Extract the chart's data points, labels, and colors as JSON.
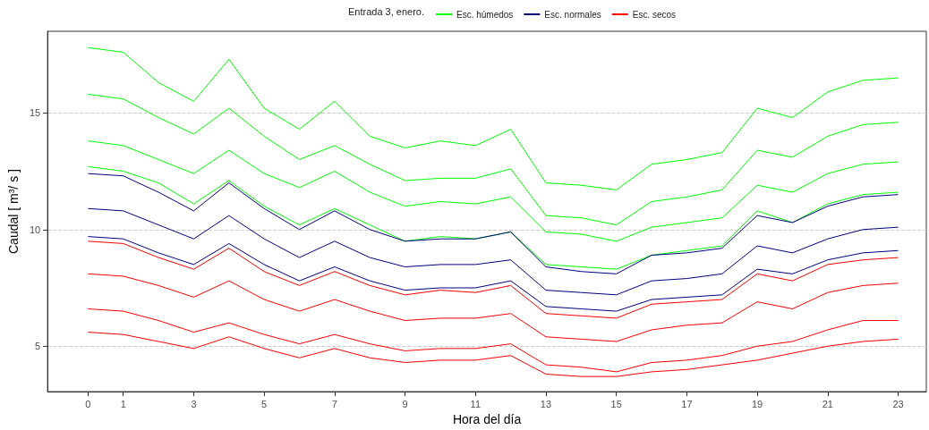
{
  "chart_data": {
    "type": "line",
    "legend_title": "Entrada 3, enero.",
    "xlabel": "Hora del día",
    "ylabel": "Caudal [ m³/ s ]",
    "x": [
      0,
      1,
      2,
      3,
      4,
      5,
      6,
      7,
      8,
      9,
      10,
      11,
      12,
      13,
      14,
      15,
      16,
      17,
      18,
      19,
      20,
      21,
      22,
      23
    ],
    "xlim": [
      -1.15,
      23.8
    ],
    "xticks": [
      0,
      1,
      3,
      5,
      7,
      9,
      11,
      13,
      15,
      17,
      19,
      21,
      23
    ],
    "ylim": [
      3.05,
      18.5
    ],
    "yticks": [
      5,
      10,
      15
    ],
    "grid": "y",
    "legend": "top",
    "marker": "none",
    "line_style": "solid",
    "series": [
      {
        "name": "Esc. húmedos",
        "color": "#00ff00",
        "values": [
          17.8,
          17.6,
          16.3,
          15.5,
          17.3,
          15.2,
          14.3,
          15.5,
          14.0,
          13.5,
          13.8,
          13.6,
          14.3,
          12.0,
          11.9,
          11.7,
          12.8,
          13.0,
          13.3,
          15.2,
          14.8,
          15.9,
          16.4,
          16.5
        ]
      },
      {
        "color": "#00ff00",
        "values": [
          15.8,
          15.6,
          14.8,
          14.1,
          15.2,
          14.0,
          13.0,
          13.6,
          12.8,
          12.1,
          12.2,
          12.2,
          12.6,
          10.6,
          10.5,
          10.2,
          11.2,
          11.4,
          11.7,
          13.4,
          13.1,
          14.0,
          14.5,
          14.6
        ]
      },
      {
        "color": "#00ff00",
        "values": [
          13.8,
          13.6,
          13.0,
          12.4,
          13.4,
          12.4,
          11.8,
          12.5,
          11.6,
          11.0,
          11.2,
          11.1,
          11.4,
          9.9,
          9.8,
          9.5,
          10.1,
          10.3,
          10.5,
          11.9,
          11.6,
          12.4,
          12.8,
          12.9
        ]
      },
      {
        "color": "#00ff00",
        "values": [
          12.7,
          12.5,
          12.0,
          11.1,
          12.1,
          11.0,
          10.2,
          10.9,
          10.2,
          9.5,
          9.7,
          9.6,
          9.9,
          8.5,
          8.4,
          8.3,
          8.9,
          9.1,
          9.3,
          10.8,
          10.3,
          11.1,
          11.5,
          11.6
        ]
      },
      {
        "name": "Esc. normales",
        "color": "#000080",
        "values": [
          12.4,
          12.3,
          11.6,
          10.8,
          12.0,
          10.9,
          10.0,
          10.8,
          10.0,
          9.5,
          9.6,
          9.6,
          9.9,
          8.4,
          8.2,
          8.1,
          8.9,
          9.0,
          9.2,
          10.6,
          10.3,
          11.0,
          11.4,
          11.5
        ]
      },
      {
        "color": "#000080",
        "values": [
          10.9,
          10.8,
          10.2,
          9.6,
          10.6,
          9.6,
          8.8,
          9.5,
          8.8,
          8.4,
          8.5,
          8.5,
          8.7,
          7.4,
          7.3,
          7.2,
          7.8,
          7.9,
          8.1,
          9.3,
          9.0,
          9.6,
          10.0,
          10.1
        ]
      },
      {
        "color": "#000080",
        "values": [
          9.7,
          9.6,
          9.0,
          8.5,
          9.4,
          8.5,
          7.8,
          8.4,
          7.8,
          7.4,
          7.5,
          7.5,
          7.8,
          6.7,
          6.6,
          6.5,
          7.0,
          7.1,
          7.2,
          8.3,
          8.1,
          8.7,
          9.0,
          9.1
        ]
      },
      {
        "name": "Esc. secos",
        "color": "#ff0000",
        "values": [
          9.5,
          9.4,
          8.8,
          8.3,
          9.2,
          8.2,
          7.6,
          8.2,
          7.6,
          7.2,
          7.4,
          7.3,
          7.6,
          6.4,
          6.3,
          6.2,
          6.8,
          6.9,
          7.0,
          8.1,
          7.8,
          8.5,
          8.7,
          8.8
        ]
      },
      {
        "color": "#ff0000",
        "values": [
          8.1,
          8.0,
          7.6,
          7.1,
          7.8,
          7.0,
          6.5,
          7.0,
          6.5,
          6.1,
          6.2,
          6.2,
          6.4,
          5.4,
          5.3,
          5.2,
          5.7,
          5.9,
          6.0,
          6.9,
          6.6,
          7.3,
          7.6,
          7.7
        ]
      },
      {
        "color": "#ff0000",
        "values": [
          6.6,
          6.5,
          6.1,
          5.6,
          6.0,
          5.5,
          5.1,
          5.5,
          5.1,
          4.8,
          4.9,
          4.9,
          5.1,
          4.2,
          4.1,
          3.9,
          4.3,
          4.4,
          4.6,
          5.0,
          5.2,
          5.7,
          6.1,
          6.1
        ]
      },
      {
        "color": "#ff0000",
        "values": [
          5.6,
          5.5,
          5.2,
          4.9,
          5.4,
          4.9,
          4.5,
          4.9,
          4.5,
          4.3,
          4.4,
          4.4,
          4.6,
          3.8,
          3.7,
          3.7,
          3.9,
          4.0,
          4.2,
          4.4,
          4.7,
          5.0,
          5.2,
          5.3
        ]
      }
    ]
  }
}
